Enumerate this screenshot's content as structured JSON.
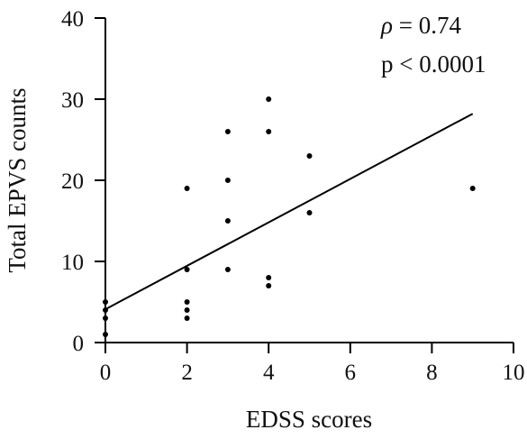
{
  "chart_data": {
    "type": "scatter",
    "xlabel": "EDSS scores",
    "ylabel": "Total EPVS counts",
    "xlim": [
      0,
      10
    ],
    "ylim": [
      0,
      40
    ],
    "xticks": [
      "0",
      "2",
      "4",
      "6",
      "8",
      "10"
    ],
    "yticks": [
      "0",
      "10",
      "20",
      "30",
      "40"
    ],
    "grid": false,
    "annotations": {
      "rho_symbol": "ρ",
      "rho_value": " = 0.74",
      "p_text": "p < 0.0001"
    },
    "points": [
      {
        "x": 0,
        "y": 5
      },
      {
        "x": 0,
        "y": 4
      },
      {
        "x": 0,
        "y": 3
      },
      {
        "x": 0,
        "y": 1
      },
      {
        "x": 2,
        "y": 19
      },
      {
        "x": 2,
        "y": 9
      },
      {
        "x": 2,
        "y": 5
      },
      {
        "x": 2,
        "y": 4
      },
      {
        "x": 2,
        "y": 3
      },
      {
        "x": 3,
        "y": 26
      },
      {
        "x": 3,
        "y": 20
      },
      {
        "x": 3,
        "y": 15
      },
      {
        "x": 3,
        "y": 9
      },
      {
        "x": 4,
        "y": 30
      },
      {
        "x": 4,
        "y": 26
      },
      {
        "x": 4,
        "y": 8
      },
      {
        "x": 4,
        "y": 7
      },
      {
        "x": 5,
        "y": 23
      },
      {
        "x": 5,
        "y": 16
      },
      {
        "x": 9,
        "y": 19
      }
    ],
    "fit_line": {
      "x": [
        0,
        9
      ],
      "y": [
        4.1,
        28.2
      ]
    },
    "colors": {
      "points": "#000000",
      "axis": "#000000",
      "line": "#000000"
    }
  }
}
